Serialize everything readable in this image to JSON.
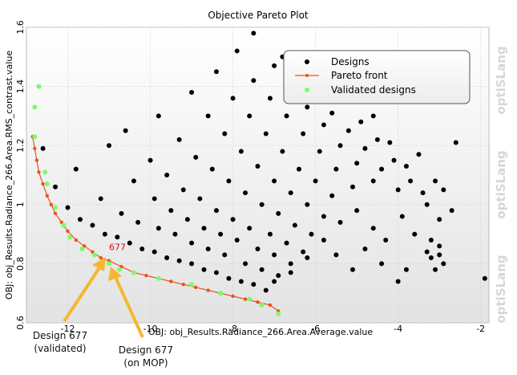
{
  "chart_data": {
    "type": "scatter",
    "title": "Objective Pareto Plot",
    "xlabel": "OBJ: obj_Results.Radiance_266.Area.Average.value",
    "ylabel": "OBJ: obj_Results.Radiance_266.Area.RMS_contrast.value",
    "xlim": [
      -13.0,
      -1.8
    ],
    "ylim": [
      0.6,
      1.6
    ],
    "xticks": [
      "-12",
      "-10",
      "-8",
      "-6",
      "-4",
      "-2"
    ],
    "xtick_values": [
      -12,
      -10,
      -8,
      -6,
      -4,
      -2
    ],
    "yticks": [
      "0.6",
      "0.8",
      "1",
      "1.2",
      "1.4",
      "1.6"
    ],
    "ytick_values": [
      0.6,
      0.8,
      1.0,
      1.2,
      1.4,
      1.6
    ],
    "grid": true,
    "legend_position": "top-right",
    "colors": {
      "designs": "#000000",
      "pareto": "#e8541c",
      "validated": "#7dfa6c",
      "arrow": "#f5b730",
      "highlight_label": "#e01010"
    },
    "series": [
      {
        "name": "Designs",
        "description_of_cloud": "dense cloud of design points above the Pareto front",
        "points": [
          [
            -12.6,
            1.19
          ],
          [
            -12.3,
            1.06
          ],
          [
            -12.0,
            0.99
          ],
          [
            -11.7,
            0.95
          ],
          [
            -11.4,
            0.93
          ],
          [
            -11.1,
            0.9
          ],
          [
            -10.8,
            0.89
          ],
          [
            -10.5,
            0.87
          ],
          [
            -10.2,
            0.85
          ],
          [
            -9.9,
            0.84
          ],
          [
            -9.6,
            0.82
          ],
          [
            -9.3,
            0.81
          ],
          [
            -9.0,
            0.8
          ],
          [
            -8.7,
            0.78
          ],
          [
            -8.4,
            0.77
          ],
          [
            -8.1,
            0.75
          ],
          [
            -7.8,
            0.74
          ],
          [
            -7.5,
            0.73
          ],
          [
            -7.2,
            0.71
          ],
          [
            -11.8,
            1.12
          ],
          [
            -11.2,
            1.02
          ],
          [
            -10.7,
            0.97
          ],
          [
            -10.3,
            0.94
          ],
          [
            -9.8,
            0.92
          ],
          [
            -9.4,
            0.9
          ],
          [
            -9.0,
            0.87
          ],
          [
            -8.6,
            0.85
          ],
          [
            -8.2,
            0.83
          ],
          [
            -7.7,
            0.8
          ],
          [
            -7.3,
            0.78
          ],
          [
            -6.9,
            0.76
          ],
          [
            -11.0,
            1.2
          ],
          [
            -10.4,
            1.08
          ],
          [
            -9.9,
            1.02
          ],
          [
            -9.5,
            0.98
          ],
          [
            -9.1,
            0.95
          ],
          [
            -8.7,
            0.92
          ],
          [
            -8.3,
            0.9
          ],
          [
            -7.9,
            0.88
          ],
          [
            -7.4,
            0.85
          ],
          [
            -7.0,
            0.83
          ],
          [
            -6.6,
            0.8
          ],
          [
            -10.6,
            1.25
          ],
          [
            -10.0,
            1.15
          ],
          [
            -9.6,
            1.1
          ],
          [
            -9.2,
            1.05
          ],
          [
            -8.8,
            1.02
          ],
          [
            -8.4,
            0.98
          ],
          [
            -8.0,
            0.95
          ],
          [
            -7.6,
            0.92
          ],
          [
            -7.1,
            0.9
          ],
          [
            -6.7,
            0.87
          ],
          [
            -6.3,
            0.84
          ],
          [
            -9.8,
            1.3
          ],
          [
            -9.3,
            1.22
          ],
          [
            -8.9,
            1.16
          ],
          [
            -8.5,
            1.12
          ],
          [
            -8.1,
            1.08
          ],
          [
            -7.7,
            1.04
          ],
          [
            -7.3,
            1.0
          ],
          [
            -6.9,
            0.97
          ],
          [
            -6.5,
            0.93
          ],
          [
            -6.1,
            0.9
          ],
          [
            -9.0,
            1.38
          ],
          [
            -8.6,
            1.3
          ],
          [
            -8.2,
            1.24
          ],
          [
            -7.8,
            1.18
          ],
          [
            -7.4,
            1.13
          ],
          [
            -7.0,
            1.08
          ],
          [
            -6.6,
            1.04
          ],
          [
            -6.2,
            1.0
          ],
          [
            -5.8,
            0.96
          ],
          [
            -8.4,
            1.45
          ],
          [
            -8.0,
            1.36
          ],
          [
            -7.6,
            1.3
          ],
          [
            -7.2,
            1.24
          ],
          [
            -6.8,
            1.18
          ],
          [
            -6.4,
            1.12
          ],
          [
            -6.0,
            1.08
          ],
          [
            -5.6,
            1.03
          ],
          [
            -7.9,
            1.52
          ],
          [
            -7.5,
            1.42
          ],
          [
            -7.1,
            1.36
          ],
          [
            -6.7,
            1.3
          ],
          [
            -6.3,
            1.24
          ],
          [
            -5.9,
            1.18
          ],
          [
            -5.5,
            1.12
          ],
          [
            -5.1,
            1.06
          ],
          [
            -7.5,
            1.58
          ],
          [
            -7.0,
            1.47
          ],
          [
            -6.6,
            1.4
          ],
          [
            -6.2,
            1.33
          ],
          [
            -5.8,
            1.27
          ],
          [
            -5.4,
            1.2
          ],
          [
            -5.0,
            1.14
          ],
          [
            -4.6,
            1.08
          ],
          [
            -6.8,
            1.5
          ],
          [
            -6.4,
            1.44
          ],
          [
            -6.0,
            1.38
          ],
          [
            -5.6,
            1.31
          ],
          [
            -5.2,
            1.25
          ],
          [
            -4.8,
            1.19
          ],
          [
            -4.4,
            1.12
          ],
          [
            -4.0,
            1.05
          ],
          [
            -5.3,
            1.35
          ],
          [
            -4.9,
            1.28
          ],
          [
            -4.5,
            1.22
          ],
          [
            -4.1,
            1.15
          ],
          [
            -3.7,
            1.08
          ],
          [
            -3.3,
            1.0
          ],
          [
            -4.6,
            1.3
          ],
          [
            -4.2,
            1.21
          ],
          [
            -3.8,
            1.13
          ],
          [
            -3.4,
            1.04
          ],
          [
            -3.0,
            0.95
          ],
          [
            -3.5,
            1.17
          ],
          [
            -3.1,
            1.08
          ],
          [
            -2.7,
            0.98
          ],
          [
            -2.6,
            1.21
          ],
          [
            -2.9,
            1.05
          ],
          [
            -3.2,
            0.88
          ],
          [
            -3.0,
            0.83
          ],
          [
            -2.9,
            0.8
          ],
          [
            -3.1,
            0.78
          ],
          [
            -3.2,
            0.82
          ],
          [
            -3.0,
            0.86
          ],
          [
            -3.3,
            0.84
          ],
          [
            -1.9,
            0.75
          ],
          [
            -3.8,
            0.78
          ],
          [
            -4.0,
            0.74
          ],
          [
            -4.3,
            0.88
          ],
          [
            -4.6,
            0.92
          ],
          [
            -5.0,
            0.98
          ],
          [
            -5.4,
            0.94
          ],
          [
            -5.8,
            0.88
          ],
          [
            -6.2,
            0.82
          ],
          [
            -6.6,
            0.77
          ],
          [
            -7.0,
            0.74
          ],
          [
            -5.1,
            0.78
          ],
          [
            -5.5,
            0.83
          ],
          [
            -4.8,
            0.85
          ],
          [
            -4.4,
            0.8
          ],
          [
            -3.6,
            0.9
          ],
          [
            -3.9,
            0.96
          ]
        ]
      },
      {
        "name": "Pareto front",
        "points": [
          [
            -12.85,
            1.23
          ],
          [
            -12.8,
            1.19
          ],
          [
            -12.75,
            1.15
          ],
          [
            -12.7,
            1.11
          ],
          [
            -12.6,
            1.07
          ],
          [
            -12.5,
            1.03
          ],
          [
            -12.4,
            1.0
          ],
          [
            -12.3,
            0.97
          ],
          [
            -12.15,
            0.94
          ],
          [
            -12.0,
            0.91
          ],
          [
            -11.8,
            0.88
          ],
          [
            -11.6,
            0.86
          ],
          [
            -11.4,
            0.84
          ],
          [
            -11.2,
            0.82
          ],
          [
            -11.0,
            0.81
          ],
          [
            -10.7,
            0.79
          ],
          [
            -10.4,
            0.77
          ],
          [
            -10.1,
            0.76
          ],
          [
            -9.8,
            0.75
          ],
          [
            -9.5,
            0.74
          ],
          [
            -9.2,
            0.73
          ],
          [
            -8.9,
            0.72
          ],
          [
            -8.6,
            0.71
          ],
          [
            -8.3,
            0.7
          ],
          [
            -8.0,
            0.69
          ],
          [
            -7.7,
            0.68
          ],
          [
            -7.4,
            0.67
          ],
          [
            -7.1,
            0.66
          ],
          [
            -6.9,
            0.64
          ]
        ]
      },
      {
        "name": "Validated designs",
        "points": [
          [
            -12.7,
            1.4
          ],
          [
            -12.8,
            1.33
          ],
          [
            -12.8,
            1.23
          ],
          [
            -12.55,
            1.11
          ],
          [
            -12.5,
            1.07
          ],
          [
            -12.3,
            0.99
          ],
          [
            -12.1,
            0.93
          ],
          [
            -11.95,
            0.89
          ],
          [
            -11.65,
            0.85
          ],
          [
            -11.35,
            0.83
          ],
          [
            -11.0,
            0.8
          ],
          [
            -10.75,
            0.78
          ],
          [
            -10.4,
            0.77
          ],
          [
            -9.8,
            0.75
          ],
          [
            -9.0,
            0.73
          ],
          [
            -8.3,
            0.7
          ],
          [
            -7.6,
            0.68
          ],
          [
            -7.3,
            0.66
          ],
          [
            -6.9,
            0.63
          ]
        ]
      }
    ],
    "highlighted_design": {
      "label": "677",
      "x": -11.0,
      "y": 0.84
    },
    "annotations": [
      {
        "text_lines": [
          "Design 677",
          "(validated)"
        ]
      },
      {
        "text_lines": [
          "Design 677",
          "(on MOP)"
        ]
      }
    ],
    "watermark": "optiSLang"
  }
}
